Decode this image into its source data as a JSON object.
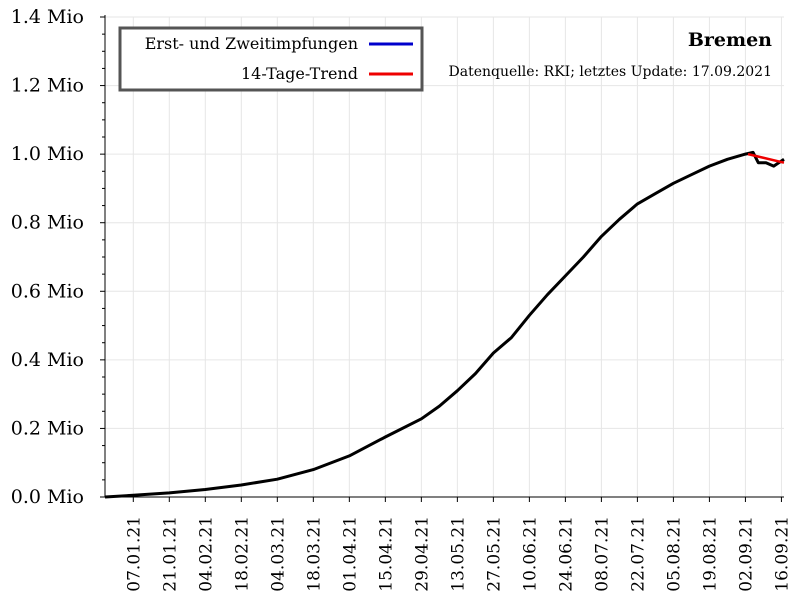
{
  "chart_data": {
    "type": "line",
    "title": "Bremen",
    "subtitle": "Datenquelle: RKI; letztes Update: 17.09.2021",
    "xlabel": "",
    "ylabel": "",
    "x_range": [
      "2020-12-27",
      "2021-09-17"
    ],
    "ylim": [
      0,
      1.4
    ],
    "y_ticks": [
      {
        "value": 0.0,
        "label": "0.0 Mio"
      },
      {
        "value": 0.2,
        "label": "0.2 Mio"
      },
      {
        "value": 0.4,
        "label": "0.4 Mio"
      },
      {
        "value": 0.6,
        "label": "0.6 Mio"
      },
      {
        "value": 0.8,
        "label": "0.8 Mio"
      },
      {
        "value": 1.0,
        "label": "1.0 Mio"
      },
      {
        "value": 1.2,
        "label": "1.2 Mio"
      },
      {
        "value": 1.4,
        "label": "1.4 Mio"
      }
    ],
    "x_ticks": [
      {
        "date": "2021-01-07",
        "label": "07.01.21"
      },
      {
        "date": "2021-01-21",
        "label": "21.01.21"
      },
      {
        "date": "2021-02-04",
        "label": "04.02.21"
      },
      {
        "date": "2021-02-18",
        "label": "18.02.21"
      },
      {
        "date": "2021-03-04",
        "label": "04.03.21"
      },
      {
        "date": "2021-03-18",
        "label": "18.03.21"
      },
      {
        "date": "2021-04-01",
        "label": "01.04.21"
      },
      {
        "date": "2021-04-15",
        "label": "15.04.21"
      },
      {
        "date": "2021-04-29",
        "label": "29.04.21"
      },
      {
        "date": "2021-05-13",
        "label": "13.05.21"
      },
      {
        "date": "2021-05-27",
        "label": "27.05.21"
      },
      {
        "date": "2021-06-10",
        "label": "10.06.21"
      },
      {
        "date": "2021-06-24",
        "label": "24.06.21"
      },
      {
        "date": "2021-07-08",
        "label": "08.07.21"
      },
      {
        "date": "2021-07-22",
        "label": "22.07.21"
      },
      {
        "date": "2021-08-05",
        "label": "05.08.21"
      },
      {
        "date": "2021-08-19",
        "label": "19.08.21"
      },
      {
        "date": "2021-09-02",
        "label": "02.09.21"
      },
      {
        "date": "2021-09-16",
        "label": "16.09.21"
      }
    ],
    "grid": true,
    "legend_position": "top-left",
    "series": [
      {
        "name": "Erst- und Zweitimpfungen",
        "legend_color": "#0000cc",
        "line_color": "#000000",
        "x": [
          "2020-12-27",
          "2021-01-07",
          "2021-01-21",
          "2021-02-04",
          "2021-02-18",
          "2021-03-04",
          "2021-03-18",
          "2021-04-01",
          "2021-04-15",
          "2021-04-29",
          "2021-05-06",
          "2021-05-13",
          "2021-05-20",
          "2021-05-27",
          "2021-06-03",
          "2021-06-10",
          "2021-06-17",
          "2021-06-24",
          "2021-07-01",
          "2021-07-08",
          "2021-07-15",
          "2021-07-22",
          "2021-07-29",
          "2021-08-05",
          "2021-08-12",
          "2021-08-19",
          "2021-08-26",
          "2021-09-02",
          "2021-09-05",
          "2021-09-07",
          "2021-09-10",
          "2021-09-13",
          "2021-09-17"
        ],
        "y": [
          0.0,
          0.005,
          0.012,
          0.022,
          0.035,
          0.052,
          0.08,
          0.12,
          0.175,
          0.228,
          0.265,
          0.31,
          0.36,
          0.42,
          0.465,
          0.53,
          0.59,
          0.645,
          0.7,
          0.76,
          0.81,
          0.855,
          0.885,
          0.915,
          0.94,
          0.965,
          0.985,
          1.0,
          1.005,
          0.975,
          0.975,
          0.965,
          0.985
        ]
      },
      {
        "name": "14-Tage-Trend",
        "legend_color": "#ee0000",
        "line_color": "#ee0000",
        "x": [
          "2021-09-03",
          "2021-09-17"
        ],
        "y": [
          1.0,
          0.975
        ]
      }
    ]
  }
}
